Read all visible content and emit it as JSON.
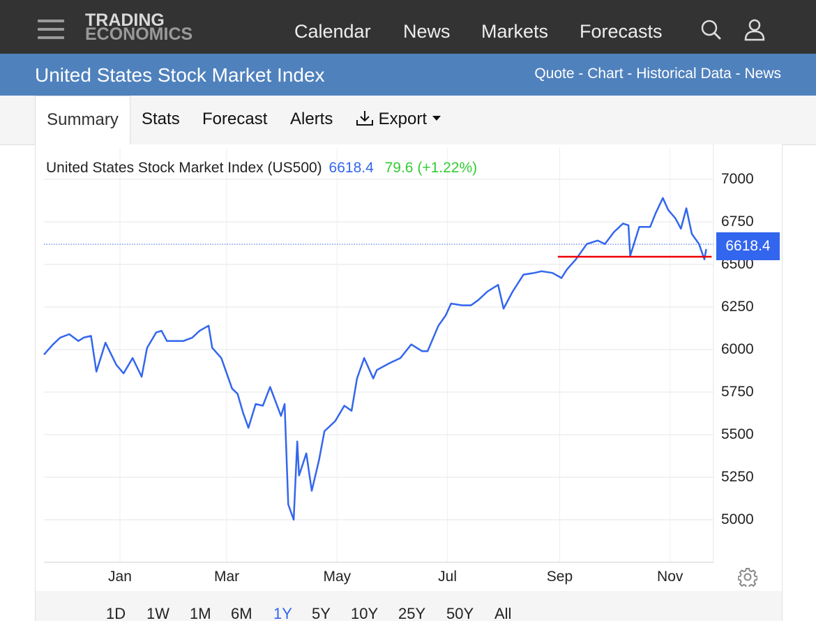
{
  "header": {
    "logo_line1": "TRADING",
    "logo_line2": "ECONOMICS",
    "nav": [
      "Calendar",
      "News",
      "Markets",
      "Forecasts"
    ],
    "icons": [
      "menu-icon",
      "search-icon",
      "user-icon"
    ]
  },
  "subheader": {
    "title": "United States Stock Market Index",
    "links": [
      "Quote",
      "Chart",
      "Historical Data",
      "News"
    ],
    "separator": " - "
  },
  "tabs": {
    "items": [
      "Summary",
      "Stats",
      "Forecast",
      "Alerts",
      "Export"
    ],
    "active": "Summary"
  },
  "chart_header": {
    "name": "United States Stock Market Index (US500)",
    "price": "6618.4",
    "change": "79.6 (+1.22%)"
  },
  "price_tag": "6618.4",
  "ranges": {
    "items": [
      "1D",
      "1W",
      "1M",
      "6M",
      "1Y",
      "5Y",
      "10Y",
      "25Y",
      "50Y",
      "All"
    ],
    "selected": "1Y"
  },
  "colors": {
    "line": "#3366ee",
    "support_line": "#ee0000",
    "change_positive": "#33cc33",
    "subheader_bg": "#4f81bd",
    "topbar_bg": "#333333"
  },
  "chart_data": {
    "type": "line",
    "series": [
      {
        "x": [
          "2024-11-20",
          "2024-11-25",
          "2024-11-29",
          "2024-12-04",
          "2024-12-09",
          "2024-12-12",
          "2024-12-16",
          "2024-12-19",
          "2024-12-24",
          "2024-12-30",
          "2025-01-03",
          "2025-01-08",
          "2025-01-13",
          "2025-01-16",
          "2025-01-21",
          "2025-01-24",
          "2025-01-27",
          "2025-01-30",
          "2025-02-05",
          "2025-02-10",
          "2025-02-14",
          "2025-02-19",
          "2025-02-21",
          "2025-02-26",
          "2025-03-04",
          "2025-03-07",
          "2025-03-10",
          "2025-03-13",
          "2025-03-17",
          "2025-03-21",
          "2025-03-25",
          "2025-03-31",
          "2025-04-02",
          "2025-04-04",
          "2025-04-07",
          "2025-04-09",
          "2025-04-10",
          "2025-04-14",
          "2025-04-17",
          "2025-04-21",
          "2025-04-24",
          "2025-04-30",
          "2025-05-05",
          "2025-05-09",
          "2025-05-12",
          "2025-05-16",
          "2025-05-21",
          "2025-05-23",
          "2025-05-30",
          "2025-06-05",
          "2025-06-11",
          "2025-06-17",
          "2025-06-20",
          "2025-06-26",
          "2025-06-30",
          "2025-07-03",
          "2025-07-09",
          "2025-07-14",
          "2025-07-18",
          "2025-07-23",
          "2025-07-29",
          "2025-08-01",
          "2025-08-06",
          "2025-08-12",
          "2025-08-18",
          "2025-08-22",
          "2025-08-28",
          "2025-09-02",
          "2025-09-05",
          "2025-09-10",
          "2025-09-16",
          "2025-09-22",
          "2025-09-26",
          "2025-10-01",
          "2025-10-06",
          "2025-10-09",
          "2025-10-10",
          "2025-10-15",
          "2025-10-21",
          "2025-10-24",
          "2025-10-28",
          "2025-10-31",
          "2025-11-04",
          "2025-11-07",
          "2025-11-10",
          "2025-11-13",
          "2025-11-17",
          "2025-11-20",
          "2025-11-21"
        ],
        "y": [
          5970,
          6030,
          6070,
          6090,
          6050,
          6070,
          6080,
          5870,
          6040,
          5910,
          5860,
          5950,
          5840,
          6010,
          6100,
          6110,
          6050,
          6050,
          6050,
          6070,
          6110,
          6140,
          6010,
          5950,
          5770,
          5740,
          5630,
          5540,
          5680,
          5670,
          5780,
          5610,
          5680,
          5090,
          5000,
          5460,
          5260,
          5390,
          5170,
          5350,
          5520,
          5580,
          5670,
          5640,
          5830,
          5950,
          5830,
          5880,
          5920,
          5950,
          6030,
          5990,
          5990,
          6140,
          6200,
          6270,
          6260,
          6260,
          6290,
          6340,
          6380,
          6240,
          6340,
          6440,
          6450,
          6460,
          6450,
          6420,
          6470,
          6530,
          6620,
          6640,
          6620,
          6690,
          6740,
          6730,
          6550,
          6720,
          6720,
          6800,
          6890,
          6820,
          6770,
          6710,
          6830,
          6680,
          6620,
          6530,
          6590
        ]
      }
    ],
    "support_level": 6545,
    "current_value": 6618.4,
    "yticks": [
      5000,
      5250,
      5500,
      5750,
      6000,
      6250,
      6500,
      6750,
      7000
    ],
    "xticks": [
      "Jan",
      "Mar",
      "May",
      "Jul",
      "Sep",
      "Nov"
    ],
    "xtick_dates": [
      "2025-01-01",
      "2025-03-01",
      "2025-05-01",
      "2025-07-01",
      "2025-09-01",
      "2025-11-01"
    ],
    "xlim": [
      "2024-11-20",
      "2025-11-25"
    ],
    "ylim": [
      4750,
      7000
    ],
    "grid": true,
    "ylabel_side": "right"
  }
}
